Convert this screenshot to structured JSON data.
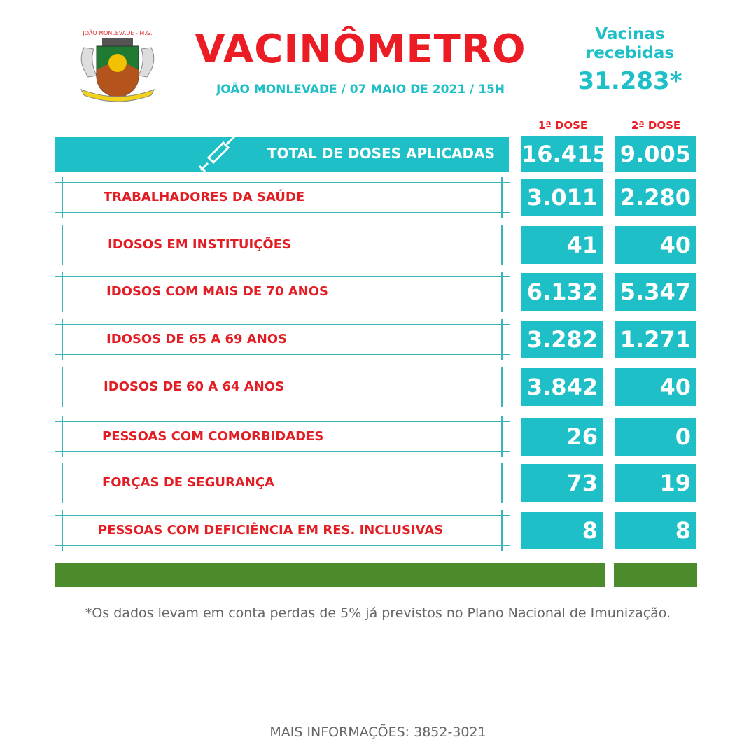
{
  "header": {
    "logo_text": "JOÃO MONLEVADE - M.G.",
    "title": "VACINÔMETRO",
    "subtitle": "JOÃO MONLEVADE / 07 MAIO DE 2021 / 15H",
    "received_label": "Vacinas recebidas",
    "received_value": "31.283*"
  },
  "columns": [
    "1ª DOSE",
    "2ª DOSE"
  ],
  "total": {
    "label": "TOTAL DE DOSES APLICADAS",
    "icon": "syringe-icon",
    "dose1": "16.415",
    "dose2": "9.005"
  },
  "rows": [
    {
      "label": "TRABALHADORES DA SAÚDE",
      "dose1": "3.011",
      "dose2": "2.280"
    },
    {
      "label": "IDOSOS EM INSTITUIÇÕES",
      "dose1": "41",
      "dose2": "40"
    },
    {
      "label": "IDOSOS COM MAIS DE 70 ANOS",
      "dose1": "6.132",
      "dose2": "5.347"
    },
    {
      "label": "IDOSOS DE 65 A 69 ANOS",
      "dose1": "3.282",
      "dose2": "1.271"
    },
    {
      "label": "IDOSOS DE 60 A 64 ANOS",
      "dose1": "3.842",
      "dose2": "40"
    },
    {
      "label": "PESSOAS  COM COMORBIDADES",
      "dose1": "26",
      "dose2": "0"
    },
    {
      "label": "FORÇAS DE  SEGURANÇA",
      "dose1": "73",
      "dose2": "19"
    },
    {
      "label": "PESSOAS COM DEFICIÊNCIA EM RES. INCLUSIVAS",
      "dose1": "8",
      "dose2": "8"
    }
  ],
  "footer": {
    "note": "*Os dados levam em conta perdas de 5% já previstos no Plano Nacional de Imunização.",
    "info": "MAIS INFORMAÇÕES:  3852-3021"
  },
  "colors": {
    "teal": "#1fbfc8",
    "red": "#ec1c24",
    "green": "#4b8b2b"
  }
}
